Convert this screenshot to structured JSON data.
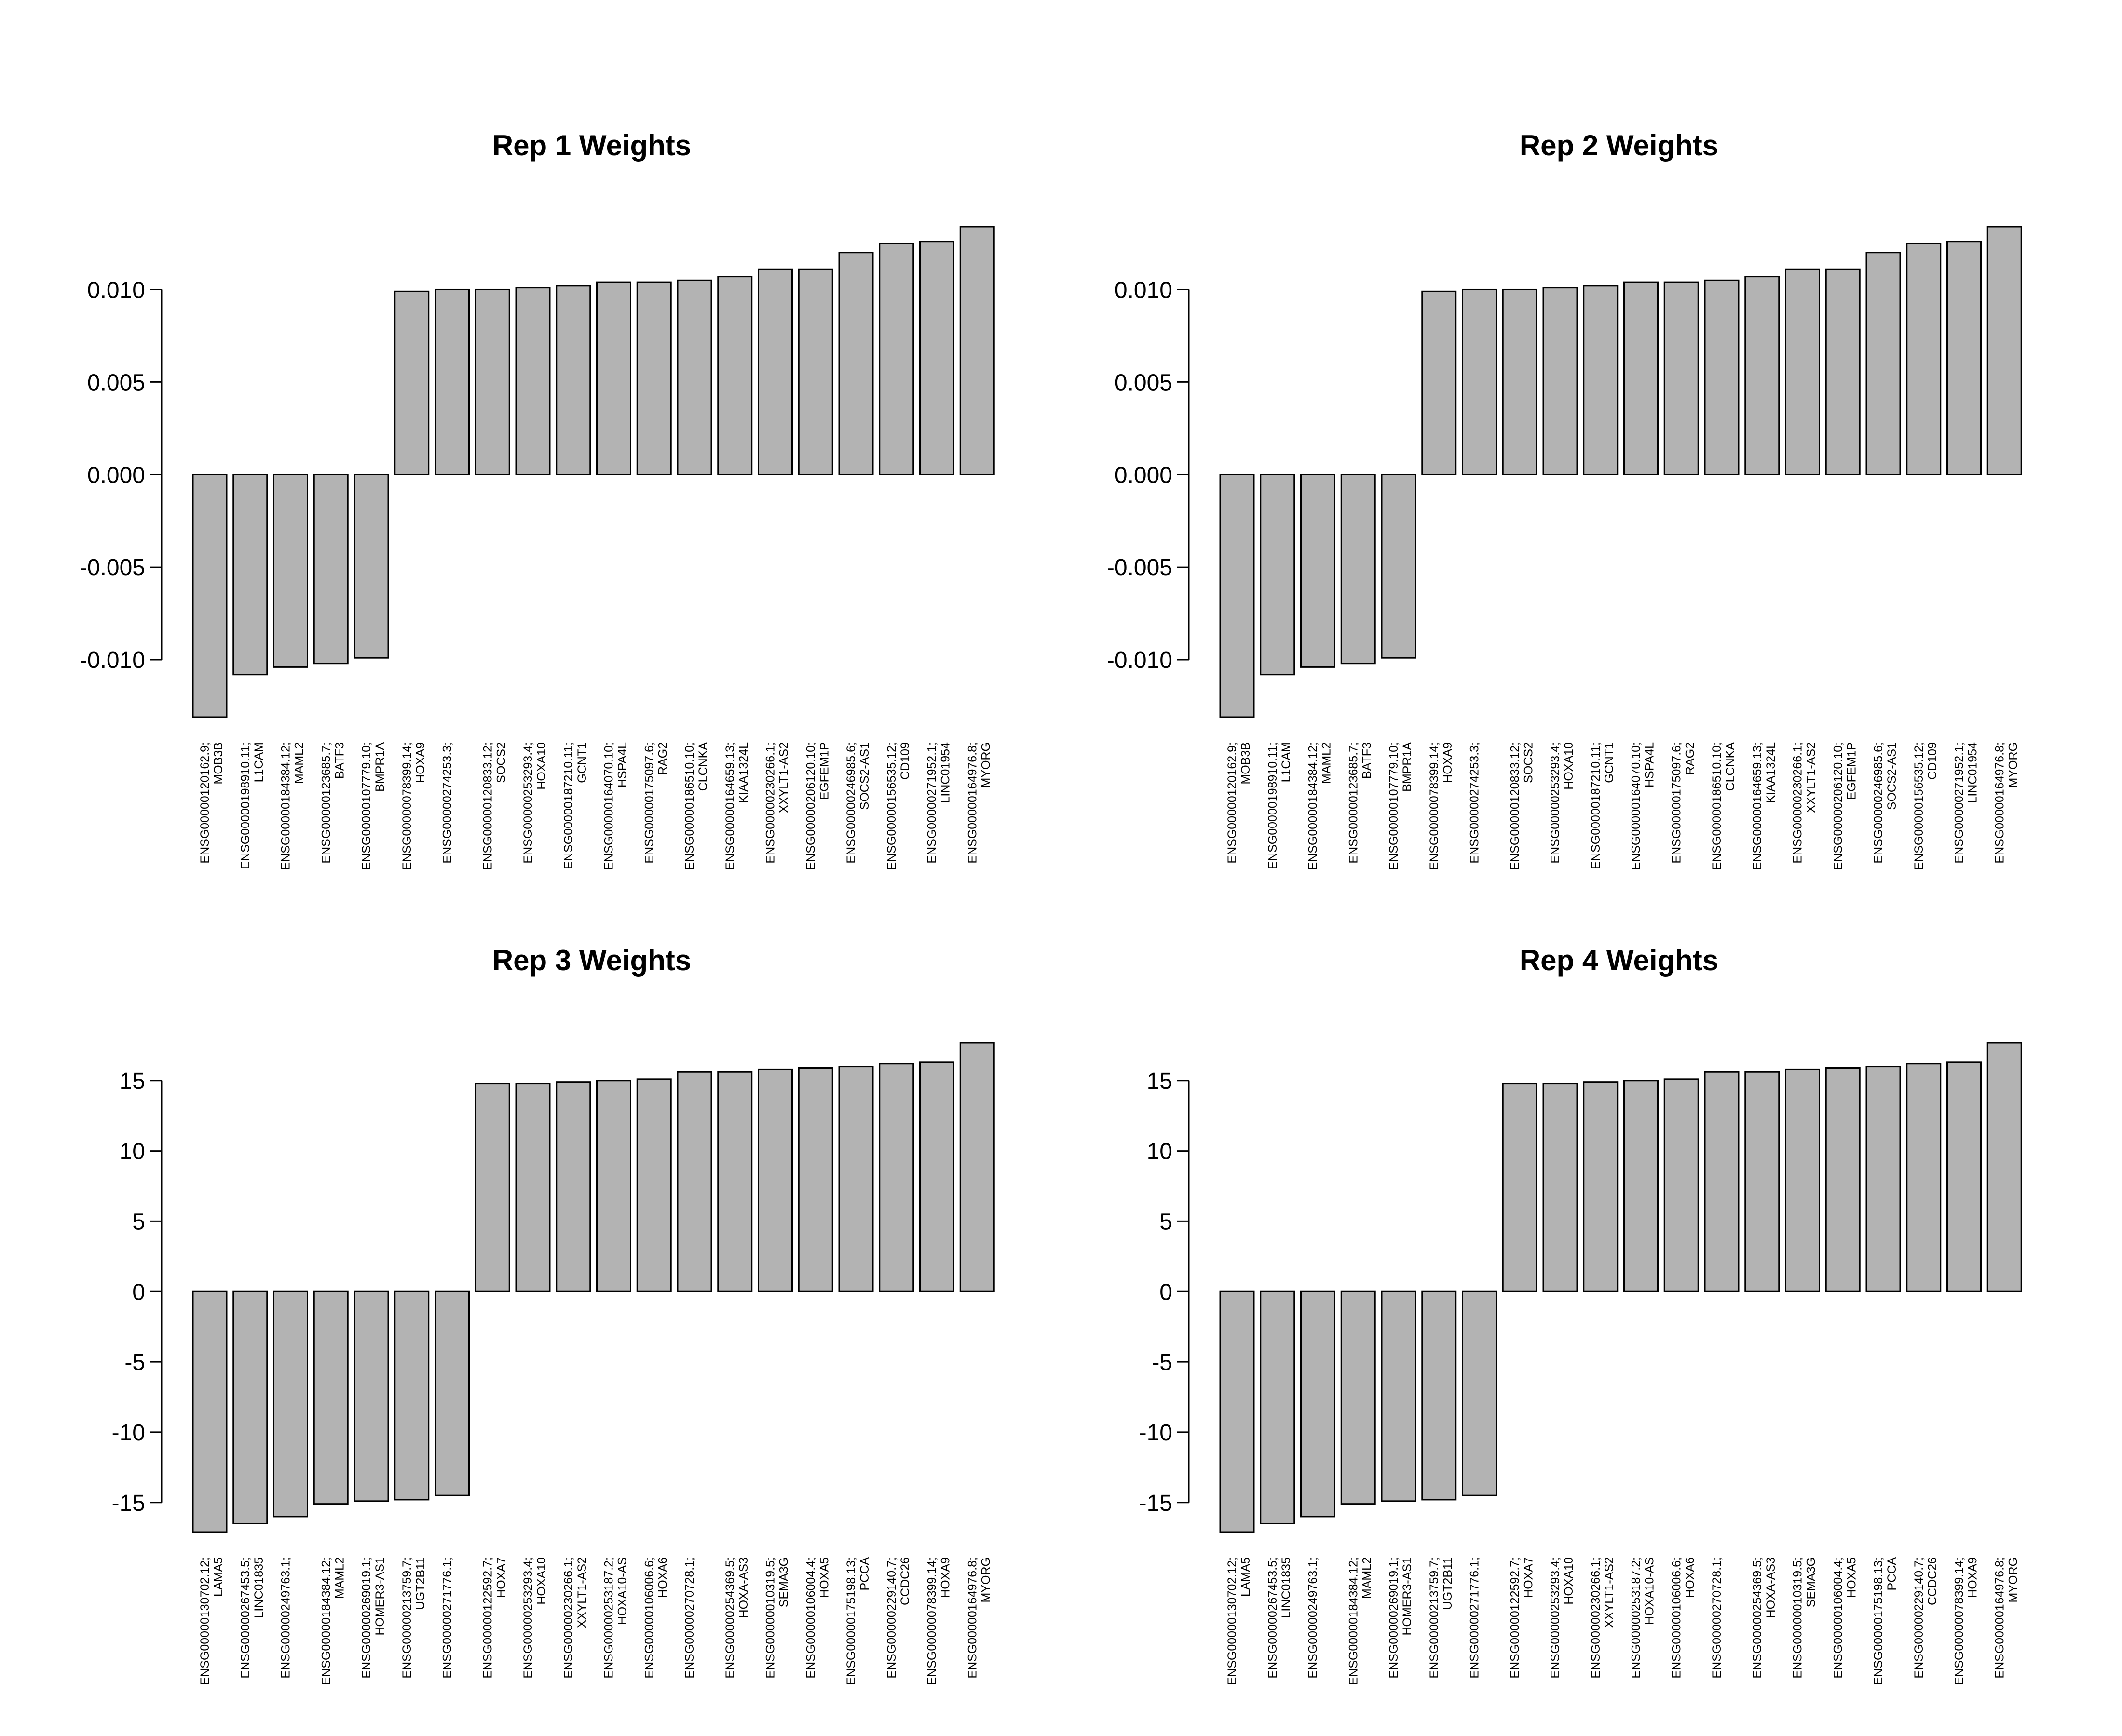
{
  "figure": {
    "background": "#ffffff",
    "bar_fill": "#b3b3b3",
    "bar_stroke": "#000000"
  },
  "chart_data": [
    {
      "type": "bar",
      "title": "Rep 1 Weights",
      "categories": [
        [
          "ENSG00000120162.9;",
          "MOB3B"
        ],
        [
          "ENSG00000198910.11;",
          "L1CAM"
        ],
        [
          "ENSG00000184384.12;",
          "MAML2"
        ],
        [
          "ENSG00000123685.7;",
          "BATF3"
        ],
        [
          "ENSG00000107779.10;",
          "BMPR1A"
        ],
        [
          "ENSG00000078399.14;",
          "HOXA9"
        ],
        [
          "ENSG00000274253.3;",
          ""
        ],
        [
          "ENSG00000120833.12;",
          "SOCS2"
        ],
        [
          "ENSG00000253293.4;",
          "HOXA10"
        ],
        [
          "ENSG00000187210.11;",
          "GCNT1"
        ],
        [
          "ENSG00000164070.10;",
          "HSPA4L"
        ],
        [
          "ENSG00000175097.6;",
          "RAG2"
        ],
        [
          "ENSG00000186510.10;",
          "CLCNKA"
        ],
        [
          "ENSG00000164659.13;",
          "KIAA1324L"
        ],
        [
          "ENSG00000230266.1;",
          "XXYLT1-AS2"
        ],
        [
          "ENSG00000206120.10;",
          "EGFEM1P"
        ],
        [
          "ENSG00000246985.6;",
          "SOCS2-AS1"
        ],
        [
          "ENSG00000156535.12;",
          "CD109"
        ],
        [
          "ENSG00000271952.1;",
          "LINC01954"
        ],
        [
          "ENSG00000164976.8;",
          "MYORG"
        ]
      ],
      "values": [
        -0.0131,
        -0.0108,
        -0.0104,
        -0.0102,
        -0.0099,
        0.0099,
        0.01,
        0.01,
        0.0101,
        0.0102,
        0.0104,
        0.0104,
        0.0105,
        0.0107,
        0.0111,
        0.0111,
        0.012,
        0.0125,
        0.0126,
        0.0134
      ],
      "ylim": [
        -0.0131,
        0.0134
      ],
      "yticks": [
        -0.01,
        -0.005,
        0,
        0.005,
        0.01
      ],
      "ytick_labels": [
        "-0.010",
        "-0.005",
        "0.000",
        "0.005",
        "0.010"
      ],
      "xlabel": "",
      "ylabel": "",
      "grid": false
    },
    {
      "type": "bar",
      "title": "Rep 2 Weights",
      "categories": [
        [
          "ENSG00000120162.9;",
          "MOB3B"
        ],
        [
          "ENSG00000198910.11;",
          "L1CAM"
        ],
        [
          "ENSG00000184384.12;",
          "MAML2"
        ],
        [
          "ENSG00000123685.7;",
          "BATF3"
        ],
        [
          "ENSG00000107779.10;",
          "BMPR1A"
        ],
        [
          "ENSG00000078399.14;",
          "HOXA9"
        ],
        [
          "ENSG00000274253.3;",
          ""
        ],
        [
          "ENSG00000120833.12;",
          "SOCS2"
        ],
        [
          "ENSG00000253293.4;",
          "HOXA10"
        ],
        [
          "ENSG00000187210.11;",
          "GCNT1"
        ],
        [
          "ENSG00000164070.10;",
          "HSPA4L"
        ],
        [
          "ENSG00000175097.6;",
          "RAG2"
        ],
        [
          "ENSG00000186510.10;",
          "CLCNKA"
        ],
        [
          "ENSG00000164659.13;",
          "KIAA1324L"
        ],
        [
          "ENSG00000230266.1;",
          "XXYLT1-AS2"
        ],
        [
          "ENSG00000206120.10;",
          "EGFEM1P"
        ],
        [
          "ENSG00000246985.6;",
          "SOCS2-AS1"
        ],
        [
          "ENSG00000156535.12;",
          "CD109"
        ],
        [
          "ENSG00000271952.1;",
          "LINC01954"
        ],
        [
          "ENSG00000164976.8;",
          "MYORG"
        ]
      ],
      "values": [
        -0.0131,
        -0.0108,
        -0.0104,
        -0.0102,
        -0.0099,
        0.0099,
        0.01,
        0.01,
        0.0101,
        0.0102,
        0.0104,
        0.0104,
        0.0105,
        0.0107,
        0.0111,
        0.0111,
        0.012,
        0.0125,
        0.0126,
        0.0134
      ],
      "ylim": [
        -0.0131,
        0.0134
      ],
      "yticks": [
        -0.01,
        -0.005,
        0,
        0.005,
        0.01
      ],
      "ytick_labels": [
        "-0.010",
        "-0.005",
        "0.000",
        "0.005",
        "0.010"
      ],
      "xlabel": "",
      "ylabel": "",
      "grid": false
    },
    {
      "type": "bar",
      "title": "Rep 3 Weights",
      "categories": [
        [
          "ENSG00000130702.12;",
          "LAMA5"
        ],
        [
          "ENSG00000267453.5;",
          "LINC01835"
        ],
        [
          "ENSG00000249763.1;",
          ""
        ],
        [
          "ENSG00000184384.12;",
          "MAML2"
        ],
        [
          "ENSG00000269019.1;",
          "HOMER3-AS1"
        ],
        [
          "ENSG00000213759.7;",
          "UGT2B11"
        ],
        [
          "ENSG00000271776.1;",
          ""
        ],
        [
          "ENSG00000122592.7;",
          "HOXA7"
        ],
        [
          "ENSG00000253293.4;",
          "HOXA10"
        ],
        [
          "ENSG00000230266.1;",
          "XXYLT1-AS2"
        ],
        [
          "ENSG00000253187.2;",
          "HOXA10-AS"
        ],
        [
          "ENSG00000106006.6;",
          "HOXA6"
        ],
        [
          "ENSG00000270728.1;",
          ""
        ],
        [
          "ENSG00000254369.5;",
          "HOXA-AS3"
        ],
        [
          "ENSG00000010319.5;",
          "SEMA3G"
        ],
        [
          "ENSG00000106004.4;",
          "HOXA5"
        ],
        [
          "ENSG00000175198.13;",
          "PCCA"
        ],
        [
          "ENSG00000229140.7;",
          "CCDC26"
        ],
        [
          "ENSG00000078399.14;",
          "HOXA9"
        ],
        [
          "ENSG00000164976.8;",
          "MYORG"
        ]
      ],
      "values": [
        -17.1,
        -16.5,
        -16.0,
        -15.1,
        -14.9,
        -14.8,
        -14.5,
        14.8,
        14.8,
        14.9,
        15.0,
        15.1,
        15.6,
        15.6,
        15.8,
        15.9,
        16.0,
        16.2,
        16.3,
        17.7
      ],
      "ylim": [
        -17.1,
        17.7
      ],
      "yticks": [
        -15,
        -10,
        -5,
        0,
        5,
        10,
        15
      ],
      "ytick_labels": [
        "-15",
        "-10",
        "-5",
        "0",
        "5",
        "10",
        "15"
      ],
      "xlabel": "",
      "ylabel": "",
      "grid": false
    },
    {
      "type": "bar",
      "title": "Rep 4 Weights",
      "categories": [
        [
          "ENSG00000130702.12;",
          "LAMA5"
        ],
        [
          "ENSG00000267453.5;",
          "LINC01835"
        ],
        [
          "ENSG00000249763.1;",
          ""
        ],
        [
          "ENSG00000184384.12;",
          "MAML2"
        ],
        [
          "ENSG00000269019.1;",
          "HOMER3-AS1"
        ],
        [
          "ENSG00000213759.7;",
          "UGT2B11"
        ],
        [
          "ENSG00000271776.1;",
          ""
        ],
        [
          "ENSG00000122592.7;",
          "HOXA7"
        ],
        [
          "ENSG00000253293.4;",
          "HOXA10"
        ],
        [
          "ENSG00000230266.1;",
          "XXYLT1-AS2"
        ],
        [
          "ENSG00000253187.2;",
          "HOXA10-AS"
        ],
        [
          "ENSG00000106006.6;",
          "HOXA6"
        ],
        [
          "ENSG00000270728.1;",
          ""
        ],
        [
          "ENSG00000254369.5;",
          "HOXA-AS3"
        ],
        [
          "ENSG00000010319.5;",
          "SEMA3G"
        ],
        [
          "ENSG00000106004.4;",
          "HOXA5"
        ],
        [
          "ENSG00000175198.13;",
          "PCCA"
        ],
        [
          "ENSG00000229140.7;",
          "CCDC26"
        ],
        [
          "ENSG00000078399.14;",
          "HOXA9"
        ],
        [
          "ENSG00000164976.8;",
          "MYORG"
        ]
      ],
      "values": [
        -17.1,
        -16.5,
        -16.0,
        -15.1,
        -14.9,
        -14.8,
        -14.5,
        14.8,
        14.8,
        14.9,
        15.0,
        15.1,
        15.6,
        15.6,
        15.8,
        15.9,
        16.0,
        16.2,
        16.3,
        17.7
      ],
      "ylim": [
        -17.1,
        17.7
      ],
      "yticks": [
        -15,
        -10,
        -5,
        0,
        5,
        10,
        15
      ],
      "ytick_labels": [
        "-15",
        "-10",
        "-5",
        "0",
        "5",
        "10",
        "15"
      ],
      "xlabel": "",
      "ylabel": "",
      "grid": false
    }
  ]
}
